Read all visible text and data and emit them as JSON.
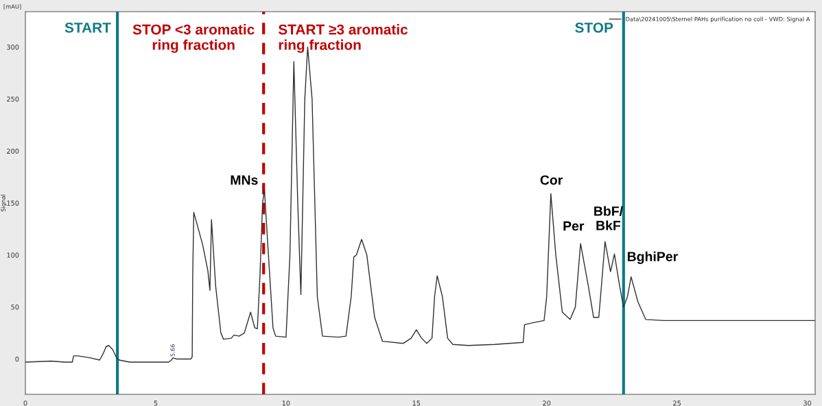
{
  "chart_data": {
    "type": "line",
    "ylabel": "Signal",
    "x": [
      0,
      1,
      1.5,
      1.8,
      1.85,
      2.0,
      2.5,
      2.85,
      3.0,
      3.1,
      3.2,
      3.35,
      3.5,
      3.6,
      4,
      5.5,
      5.6,
      5.66,
      5.8,
      6.35,
      6.4,
      6.42,
      6.46,
      6.8,
      7.0,
      7.08,
      7.14,
      7.3,
      7.5,
      7.6,
      7.9,
      8.0,
      8.2,
      8.4,
      8.64,
      8.8,
      8.9,
      9.0,
      9.1,
      9.17,
      9.3,
      9.5,
      9.6,
      10.0,
      10.15,
      10.3,
      10.45,
      10.57,
      10.72,
      10.83,
      11.0,
      11.2,
      11.4,
      12.0,
      12.3,
      12.5,
      12.6,
      12.7,
      12.9,
      13.1,
      13.4,
      13.7,
      14.5,
      14.8,
      15.0,
      15.2,
      15.4,
      15.6,
      15.7,
      15.8,
      16.0,
      16.2,
      16.4,
      17,
      18,
      19.1,
      19.15,
      19.5,
      19.9,
      20.0,
      20.16,
      20.35,
      20.6,
      20.9,
      21.1,
      21.3,
      21.6,
      21.8,
      22.0,
      22.1,
      22.24,
      22.45,
      22.6,
      22.8,
      22.95,
      23.1,
      23.24,
      23.5,
      23.8,
      24.5,
      25,
      30,
      30.3
    ],
    "series": [
      {
        "name": "Data\\20241005\\Sternel PAHs purification no coll - VWD: Signal A",
        "color": "#303030",
        "values": [
          -3,
          -2,
          -3,
          -3,
          3,
          3,
          1,
          -1,
          6,
          12,
          13,
          9,
          1,
          -1,
          -3,
          -3,
          -1,
          1,
          0,
          0,
          2,
          80,
          141,
          110,
          85,
          66,
          134,
          70,
          25,
          19,
          20,
          23,
          22,
          25,
          45,
          30,
          29,
          80,
          150,
          163,
          110,
          30,
          22,
          21,
          100,
          286,
          150,
          62,
          250,
          300,
          250,
          60,
          22,
          21,
          22,
          60,
          98,
          100,
          115,
          100,
          40,
          17,
          15,
          20,
          28,
          20,
          15,
          20,
          60,
          80,
          60,
          20,
          14,
          13,
          14,
          16,
          33,
          35,
          37,
          60,
          159,
          100,
          45,
          38,
          50,
          111,
          70,
          40,
          40,
          70,
          113,
          84,
          101,
          70,
          50,
          60,
          79,
          55,
          38,
          37,
          37,
          37,
          37
        ]
      }
    ],
    "xlim": [
      0,
      30.3
    ],
    "ylim": [
      -34,
      334
    ],
    "xticks": [
      0,
      5,
      10,
      15,
      20,
      25,
      30
    ],
    "yticks": [
      0,
      50,
      100,
      150,
      200,
      250,
      300
    ],
    "grid": false,
    "legend": "top right",
    "ref_lines": [
      {
        "axis": "x",
        "value": 3.53,
        "color": "#0e7a87",
        "line_style": "solid"
      },
      {
        "axis": "x",
        "value": 9.14,
        "color": "#c00000",
        "line_style": "dashed"
      },
      {
        "axis": "x",
        "value": 22.95,
        "color": "#0e7a87",
        "line_style": "solid"
      }
    ],
    "annotations": [
      "START",
      "STOP <3 aromatic\nring fraction",
      "START ≥3 aromatic\nring fraction",
      "STOP",
      "MNs",
      "Cor",
      "Per",
      "BbF/\nBkF",
      "BghiPer",
      "5.66",
      "[mAU]"
    ]
  }
}
